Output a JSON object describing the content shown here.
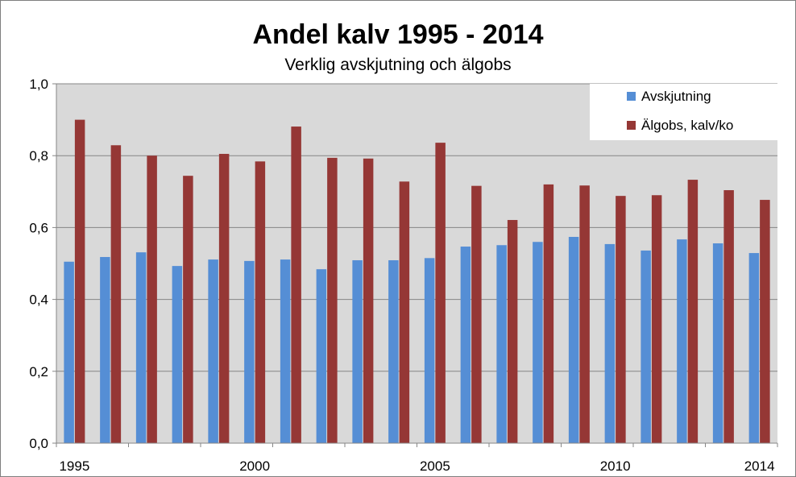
{
  "chart_data": {
    "type": "bar",
    "title": "Andel kalv 1995 - 2014",
    "subtitle": "Verklig avskjutning och älgobs",
    "xlabel": "",
    "ylabel": "",
    "ylim": [
      0,
      1.0
    ],
    "ytick_values": [
      0,
      0.2,
      0.4,
      0.6,
      0.8,
      1.0
    ],
    "yticks": [
      "0,0",
      "0,2",
      "0,4",
      "0,6",
      "0,8",
      "1,0"
    ],
    "categories": [
      1995,
      1996,
      1997,
      1998,
      1999,
      2000,
      2001,
      2002,
      2003,
      2004,
      2005,
      2006,
      2007,
      2008,
      2009,
      2010,
      2011,
      2012,
      2013,
      2014
    ],
    "xtick_labels": [
      {
        "year": 1995,
        "label": "1995"
      },
      {
        "year": 2000,
        "label": "2000"
      },
      {
        "year": 2005,
        "label": "2005"
      },
      {
        "year": 2010,
        "label": "2010"
      },
      {
        "year": 2014,
        "label": "2014"
      }
    ],
    "grid": true,
    "legend_position": "top-right",
    "plot_background": "#d9d9d9",
    "series": [
      {
        "name": "Avskjutning",
        "color": "#558ed5",
        "values": [
          0.505,
          0.518,
          0.531,
          0.493,
          0.511,
          0.507,
          0.511,
          0.484,
          0.509,
          0.509,
          0.515,
          0.547,
          0.551,
          0.56,
          0.574,
          0.554,
          0.536,
          0.567,
          0.556,
          0.529
        ]
      },
      {
        "name": "Älgobs, kalv/ko",
        "color": "#953735",
        "values": [
          0.9,
          0.829,
          0.8,
          0.744,
          0.805,
          0.784,
          0.881,
          0.794,
          0.792,
          0.728,
          0.836,
          0.716,
          0.621,
          0.72,
          0.717,
          0.688,
          0.69,
          0.733,
          0.704,
          0.677
        ]
      }
    ]
  }
}
